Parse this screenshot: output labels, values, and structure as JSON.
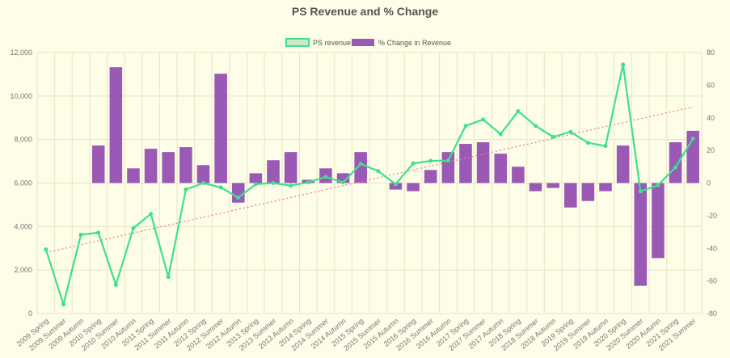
{
  "chart_data": {
    "type": "bar",
    "title": "PS Revenue and % Change",
    "categories": [
      "2009 Spring",
      "2009 Summer",
      "2009 Autumn",
      "2010 Spring",
      "2010 Summer",
      "2010 Autumn",
      "2011 Spring",
      "2011 Summer",
      "2011 Autumn",
      "2012 Spring",
      "2012 Summer",
      "2012 Autumn",
      "2013 Spring",
      "2013 Summer",
      "2013 Autumn",
      "2014 Spring",
      "2014 Summer",
      "2014 Autumn",
      "2015 Spring",
      "2015 Summer",
      "2015 Autumn",
      "2016 Spring",
      "2016 Summer",
      "2016 Autumn",
      "2017 Spring",
      "2017 Summer",
      "2017 Autumn",
      "2018 Spring",
      "2018 Summer",
      "2018 Autumn",
      "2019 Spring",
      "2019 Summer",
      "2019 Autumn",
      "2020 Spring",
      "2020 Summer",
      "2020 Autumn",
      "2021 Spring",
      "2021 Summer"
    ],
    "series": [
      {
        "name": "PS revenue",
        "type": "line",
        "axis": "left",
        "color": "#3ee08f",
        "values": [
          2950,
          420,
          3620,
          3720,
          1320,
          3930,
          4580,
          1680,
          5700,
          6000,
          5800,
          5330,
          5950,
          6000,
          5880,
          6030,
          6280,
          6030,
          6880,
          6550,
          5950,
          6900,
          7020,
          7030,
          8630,
          8920,
          8250,
          9300,
          8630,
          8120,
          8350,
          7850,
          7700,
          11450,
          5620,
          5900,
          6720,
          8040
        ]
      },
      {
        "name": "% Change in Revenue",
        "type": "bar",
        "axis": "right",
        "color": "#9b59b6",
        "values": [
          null,
          null,
          null,
          23,
          71,
          9,
          21,
          19,
          22,
          11,
          67,
          -12,
          6,
          14,
          19,
          2,
          9,
          6,
          19,
          null,
          -4,
          -5,
          8,
          19,
          24,
          25,
          18,
          10,
          -5,
          -3,
          -15,
          -11,
          -5,
          23,
          -63,
          -46,
          25,
          32
        ]
      }
    ],
    "trendline": {
      "color": "#e87a8a",
      "start": 2800,
      "end": 9500
    },
    "yleft": {
      "min": 0,
      "max": 12000,
      "ticks": [
        "0",
        "2,000",
        "4,000",
        "6,000",
        "8,000",
        "10,000",
        "12,000"
      ]
    },
    "yright": {
      "min": -80,
      "max": 80,
      "ticks": [
        "-80",
        "-60",
        "-40",
        "-20",
        "0",
        "20",
        "40",
        "60",
        "80"
      ]
    },
    "legend": {
      "position": "top-center"
    },
    "grid": true
  }
}
